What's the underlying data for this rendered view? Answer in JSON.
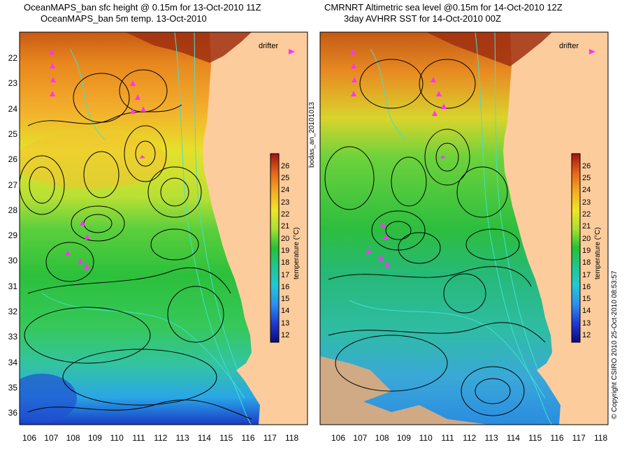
{
  "panels": [
    {
      "title_line1": "OceanMAPS_ban sfc height @ 0.15m for 13-Oct-2010 11Z",
      "title_line2": "OceanMAPS_ban 5m temp. 13-Oct-2010"
    },
    {
      "title_line1": "CMRNRT Altimetric sea level  @0.15m  for 14-Oct-2010 12Z",
      "title_line2": "3day AVHRR SST for 14-Oct-2010 00Z"
    }
  ],
  "lat_labels": [
    "22",
    "23",
    "24",
    "25",
    "26",
    "27",
    "28",
    "29",
    "30",
    "31",
    "32",
    "33",
    "34",
    "35",
    "36"
  ],
  "lon_labels": [
    "106",
    "107",
    "108",
    "109",
    "110",
    "111",
    "112",
    "113",
    "114",
    "115",
    "116",
    "117",
    "118"
  ],
  "drifter_label": "drifter",
  "colorbar": {
    "title": "temperature (°C)",
    "ticks": [
      "12",
      "13",
      "14",
      "15",
      "16",
      "17",
      "18",
      "19",
      "20",
      "21",
      "22",
      "23",
      "24",
      "25",
      "26"
    ]
  },
  "side_text_left": "bodas_an_20101013",
  "side_text_right": "© Copyright CSIRO 2010   25-Oct-2010 08:53:57",
  "colors": {
    "land": "#fdcc9c",
    "contour": "#000000",
    "bathymetry": "#40e0d0",
    "drifter": "#ff33ff"
  }
}
